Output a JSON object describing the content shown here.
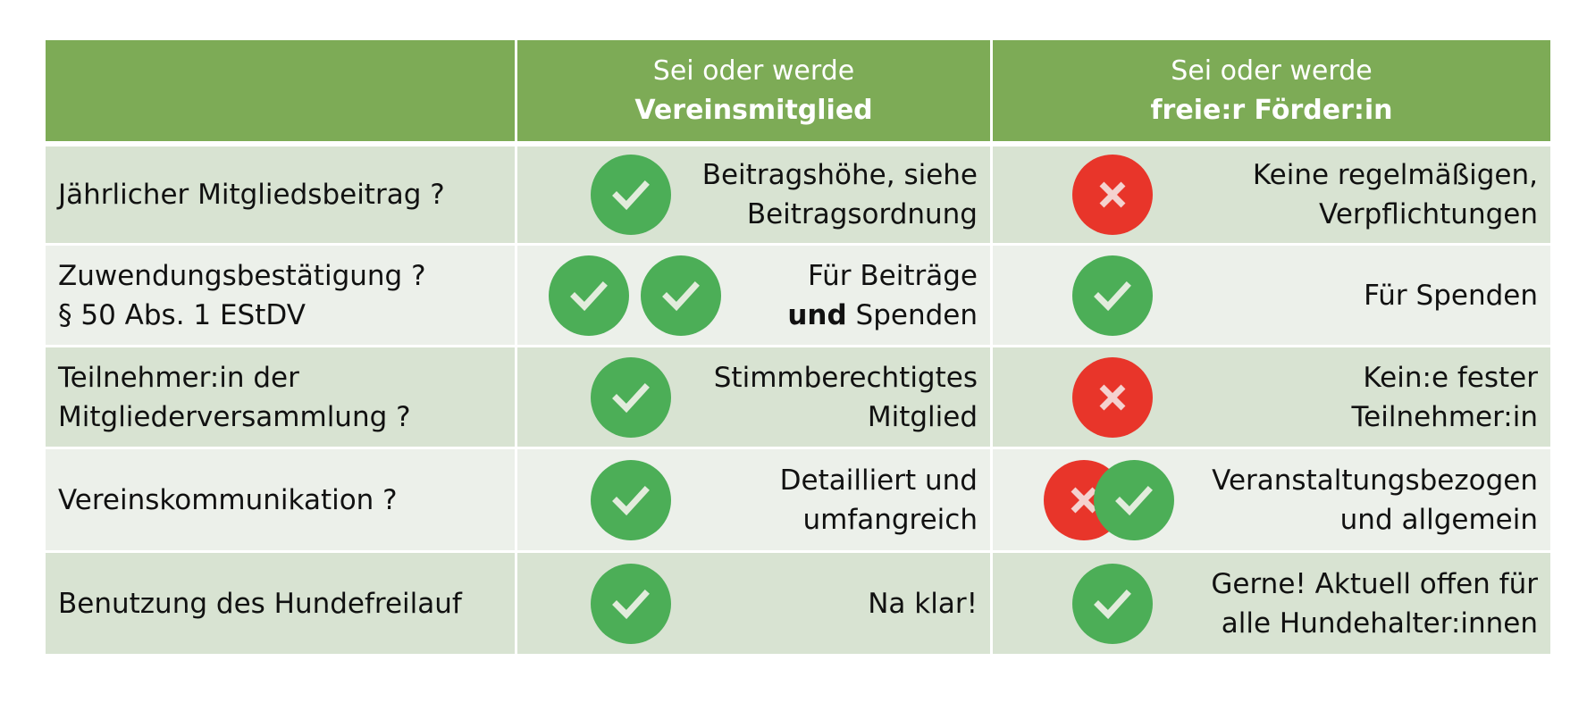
{
  "header": {
    "member": {
      "line1": "Sei oder werde",
      "line2": "Vereinsmitglied"
    },
    "supporter": {
      "line1": "Sei oder werde",
      "line2": "freie:r Förder:in"
    }
  },
  "rows": [
    {
      "label": [
        "Jährlicher Mitgliedsbeitrag ?"
      ],
      "member": {
        "icons": [
          "check-icon"
        ],
        "text": [
          "Beitragshöhe, siehe",
          "Beitragsordnung"
        ]
      },
      "supporter": {
        "icons": [
          "cross-icon"
        ],
        "text": [
          "Keine regelmäßigen,",
          "Verpflichtungen"
        ]
      }
    },
    {
      "label": [
        "Zuwendungsbestätigung ?",
        "§ 50 Abs. 1 EStDV"
      ],
      "member": {
        "icons": [
          "check-icon",
          "check-icon"
        ],
        "text": [
          "Für Beiträge"
        ],
        "bold": "und",
        "rest": " Spenden"
      },
      "supporter": {
        "icons": [
          "check-icon"
        ],
        "text": [
          "Für Spenden"
        ]
      }
    },
    {
      "label": [
        "Teilnehmer:in der",
        "Mitgliederversammlung ?"
      ],
      "member": {
        "icons": [
          "check-icon"
        ],
        "text": [
          "Stimmberechtigtes",
          "Mitglied"
        ]
      },
      "supporter": {
        "icons": [
          "cross-icon"
        ],
        "text": [
          "Kein:e fester",
          "Teilnehmer:in"
        ]
      }
    },
    {
      "label": [
        "Vereinskommunikation ?"
      ],
      "member": {
        "icons": [
          "check-icon"
        ],
        "text": [
          "Detailliert und",
          "umfangreich"
        ]
      },
      "supporter": {
        "icons": [
          "cross-icon",
          "check-icon"
        ],
        "text": [
          "Veranstaltungsbezogen",
          "und allgemein"
        ]
      }
    },
    {
      "label": [
        "Benutzung des Hundefreilauf"
      ],
      "member": {
        "icons": [
          "check-icon"
        ],
        "text": [
          "Na klar!"
        ]
      },
      "supporter": {
        "icons": [
          "check-icon"
        ],
        "text": [
          "Gerne! Aktuell offen für",
          "alle Hundehalter:innen"
        ]
      }
    }
  ],
  "colors": {
    "header": "#7dab56",
    "row_odd": "#d8e3d2",
    "row_even": "#ecf0ea",
    "check": "#4cae57",
    "cross": "#e8352a"
  }
}
